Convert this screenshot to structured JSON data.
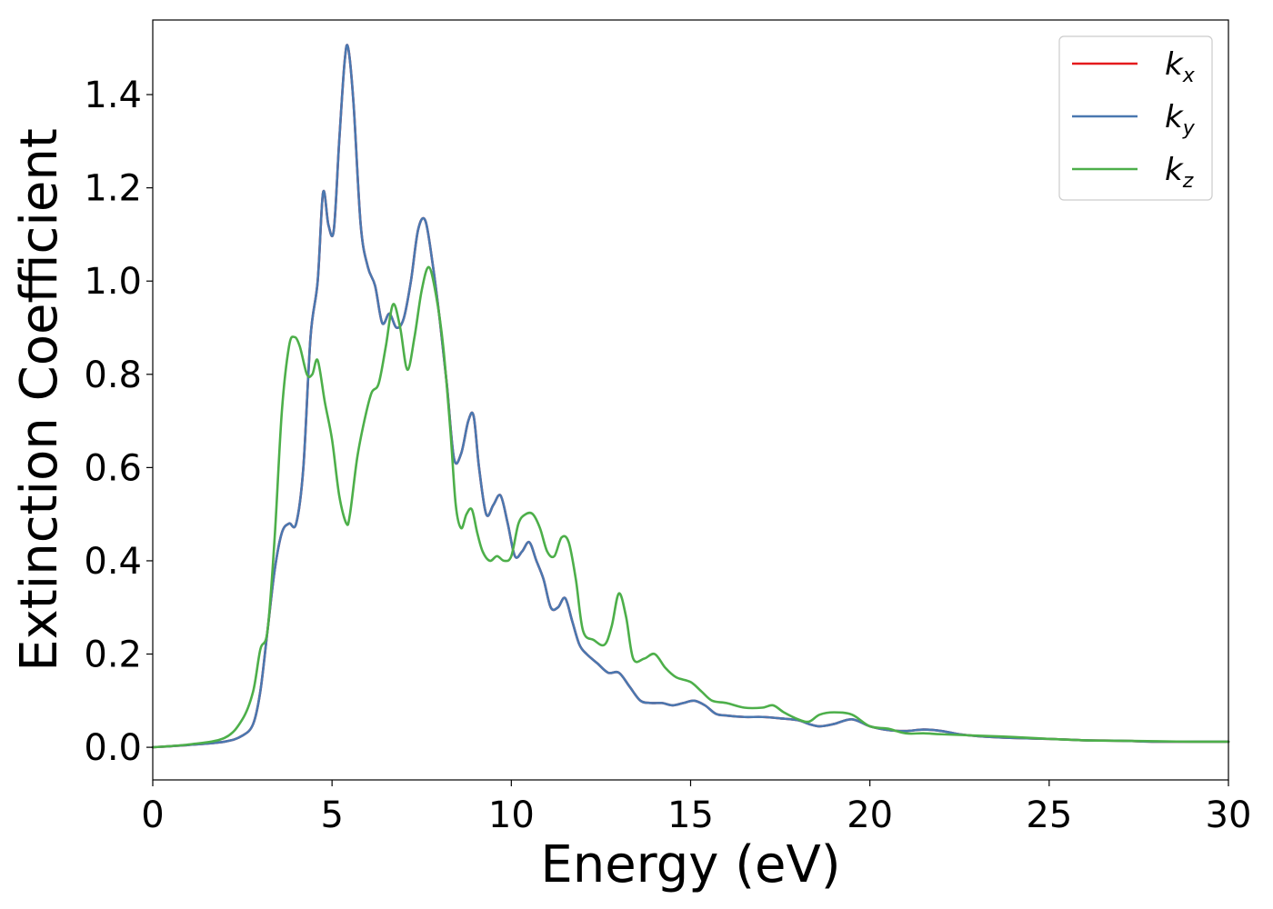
{
  "chart_data": {
    "type": "line",
    "title": "",
    "xlabel": "Energy (eV)",
    "ylabel": "Extinction Coefficient",
    "xlim": [
      0,
      30
    ],
    "ylim": [
      -0.07,
      1.56
    ],
    "xticks": [
      0,
      5,
      10,
      15,
      20,
      25,
      30
    ],
    "xtick_labels": [
      "0",
      "5",
      "10",
      "15",
      "20",
      "25",
      "30"
    ],
    "yticks": [
      0.0,
      0.2,
      0.4,
      0.6,
      0.8,
      1.0,
      1.2,
      1.4
    ],
    "ytick_labels": [
      "0.0",
      "0.2",
      "0.4",
      "0.6",
      "0.8",
      "1.0",
      "1.2",
      "1.4"
    ],
    "grid": false,
    "legend_position": "top-right",
    "series": [
      {
        "name": "k_x",
        "label_main": "k",
        "label_sub": "x",
        "color": "#e41a1c",
        "x": [
          0,
          1,
          2,
          2.5,
          2.8,
          3.0,
          3.2,
          3.4,
          3.6,
          3.8,
          4.0,
          4.2,
          4.4,
          4.6,
          4.75,
          4.9,
          5.05,
          5.2,
          5.35,
          5.45,
          5.6,
          5.8,
          6.0,
          6.2,
          6.4,
          6.6,
          6.8,
          7.0,
          7.2,
          7.4,
          7.6,
          7.8,
          8.0,
          8.2,
          8.4,
          8.6,
          8.8,
          8.95,
          9.1,
          9.3,
          9.5,
          9.7,
          9.9,
          10.1,
          10.3,
          10.5,
          10.7,
          10.9,
          11.1,
          11.3,
          11.5,
          11.7,
          11.9,
          12.1,
          12.4,
          12.7,
          13.0,
          13.3,
          13.6,
          13.9,
          14.2,
          14.5,
          14.8,
          15.1,
          15.4,
          15.7,
          16.0,
          16.5,
          17.0,
          17.5,
          18.0,
          18.3,
          18.6,
          19.0,
          19.5,
          20.0,
          20.5,
          21.0,
          21.5,
          22.0,
          22.5,
          23.0,
          24.0,
          25.0,
          26.0,
          27.0,
          28.0,
          29.0,
          30.0
        ],
        "y": [
          0.0,
          0.005,
          0.012,
          0.025,
          0.05,
          0.12,
          0.25,
          0.38,
          0.46,
          0.48,
          0.48,
          0.6,
          0.88,
          1.0,
          1.19,
          1.12,
          1.11,
          1.3,
          1.47,
          1.5,
          1.38,
          1.12,
          1.03,
          0.99,
          0.91,
          0.93,
          0.9,
          0.92,
          1.0,
          1.11,
          1.13,
          1.04,
          0.92,
          0.78,
          0.62,
          0.63,
          0.7,
          0.71,
          0.6,
          0.5,
          0.52,
          0.54,
          0.48,
          0.41,
          0.42,
          0.44,
          0.4,
          0.36,
          0.3,
          0.3,
          0.32,
          0.27,
          0.22,
          0.2,
          0.18,
          0.16,
          0.16,
          0.13,
          0.1,
          0.095,
          0.095,
          0.09,
          0.095,
          0.1,
          0.09,
          0.072,
          0.068,
          0.065,
          0.065,
          0.062,
          0.058,
          0.05,
          0.045,
          0.05,
          0.06,
          0.045,
          0.037,
          0.035,
          0.038,
          0.035,
          0.028,
          0.024,
          0.02,
          0.018,
          0.015,
          0.014,
          0.012,
          0.012,
          0.012
        ]
      },
      {
        "name": "k_y",
        "label_main": "k",
        "label_sub": "y",
        "color": "#4a78b0",
        "x": [
          0,
          1,
          2,
          2.5,
          2.8,
          3.0,
          3.2,
          3.4,
          3.6,
          3.8,
          4.0,
          4.2,
          4.4,
          4.6,
          4.75,
          4.9,
          5.05,
          5.2,
          5.35,
          5.45,
          5.6,
          5.8,
          6.0,
          6.2,
          6.4,
          6.6,
          6.8,
          7.0,
          7.2,
          7.4,
          7.6,
          7.8,
          8.0,
          8.2,
          8.4,
          8.6,
          8.8,
          8.95,
          9.1,
          9.3,
          9.5,
          9.7,
          9.9,
          10.1,
          10.3,
          10.5,
          10.7,
          10.9,
          11.1,
          11.3,
          11.5,
          11.7,
          11.9,
          12.1,
          12.4,
          12.7,
          13.0,
          13.3,
          13.6,
          13.9,
          14.2,
          14.5,
          14.8,
          15.1,
          15.4,
          15.7,
          16.0,
          16.5,
          17.0,
          17.5,
          18.0,
          18.3,
          18.6,
          19.0,
          19.5,
          20.0,
          20.5,
          21.0,
          21.5,
          22.0,
          22.5,
          23.0,
          24.0,
          25.0,
          26.0,
          27.0,
          28.0,
          29.0,
          30.0
        ],
        "y": [
          0.0,
          0.005,
          0.012,
          0.025,
          0.05,
          0.12,
          0.25,
          0.38,
          0.46,
          0.48,
          0.48,
          0.6,
          0.88,
          1.0,
          1.19,
          1.12,
          1.11,
          1.3,
          1.47,
          1.5,
          1.38,
          1.12,
          1.03,
          0.99,
          0.91,
          0.93,
          0.9,
          0.92,
          1.0,
          1.11,
          1.13,
          1.04,
          0.92,
          0.78,
          0.62,
          0.63,
          0.7,
          0.71,
          0.6,
          0.5,
          0.52,
          0.54,
          0.48,
          0.41,
          0.42,
          0.44,
          0.4,
          0.36,
          0.3,
          0.3,
          0.32,
          0.27,
          0.22,
          0.2,
          0.18,
          0.16,
          0.16,
          0.13,
          0.1,
          0.095,
          0.095,
          0.09,
          0.095,
          0.1,
          0.09,
          0.072,
          0.068,
          0.065,
          0.065,
          0.062,
          0.058,
          0.05,
          0.045,
          0.05,
          0.06,
          0.045,
          0.037,
          0.035,
          0.038,
          0.035,
          0.028,
          0.024,
          0.02,
          0.018,
          0.015,
          0.014,
          0.012,
          0.012,
          0.012
        ]
      },
      {
        "name": "k_z",
        "label_main": "k",
        "label_sub": "z",
        "color": "#4daf4a",
        "x": [
          0,
          1,
          2,
          2.5,
          2.8,
          3.0,
          3.2,
          3.4,
          3.6,
          3.8,
          3.95,
          4.1,
          4.3,
          4.45,
          4.6,
          4.8,
          5.0,
          5.2,
          5.4,
          5.5,
          5.7,
          5.9,
          6.1,
          6.3,
          6.5,
          6.7,
          6.9,
          7.1,
          7.3,
          7.5,
          7.7,
          7.9,
          8.1,
          8.3,
          8.45,
          8.6,
          8.75,
          8.9,
          9.05,
          9.2,
          9.4,
          9.6,
          9.8,
          10.0,
          10.2,
          10.4,
          10.6,
          10.8,
          11.0,
          11.2,
          11.4,
          11.6,
          11.8,
          12.0,
          12.3,
          12.6,
          12.8,
          13.0,
          13.2,
          13.4,
          13.7,
          14.0,
          14.3,
          14.6,
          15.0,
          15.3,
          15.6,
          16.0,
          16.5,
          17.0,
          17.3,
          17.6,
          18.0,
          18.3,
          18.6,
          19.0,
          19.5,
          20.0,
          20.5,
          21.0,
          21.5,
          22.0,
          23.0,
          24.0,
          25.0,
          26.0,
          27.0,
          28.0,
          29.0,
          30.0
        ],
        "y": [
          0.0,
          0.006,
          0.02,
          0.06,
          0.12,
          0.21,
          0.25,
          0.45,
          0.72,
          0.86,
          0.88,
          0.86,
          0.8,
          0.8,
          0.83,
          0.74,
          0.66,
          0.54,
          0.48,
          0.5,
          0.62,
          0.7,
          0.76,
          0.78,
          0.86,
          0.95,
          0.9,
          0.81,
          0.88,
          0.98,
          1.03,
          0.97,
          0.86,
          0.68,
          0.52,
          0.47,
          0.5,
          0.51,
          0.46,
          0.42,
          0.4,
          0.41,
          0.4,
          0.41,
          0.48,
          0.5,
          0.5,
          0.47,
          0.42,
          0.41,
          0.45,
          0.44,
          0.36,
          0.25,
          0.23,
          0.22,
          0.26,
          0.33,
          0.28,
          0.19,
          0.19,
          0.2,
          0.17,
          0.15,
          0.14,
          0.12,
          0.1,
          0.095,
          0.085,
          0.085,
          0.09,
          0.075,
          0.06,
          0.055,
          0.07,
          0.075,
          0.07,
          0.045,
          0.04,
          0.03,
          0.03,
          0.028,
          0.025,
          0.022,
          0.018,
          0.015,
          0.014,
          0.013,
          0.012,
          0.012
        ]
      }
    ]
  }
}
